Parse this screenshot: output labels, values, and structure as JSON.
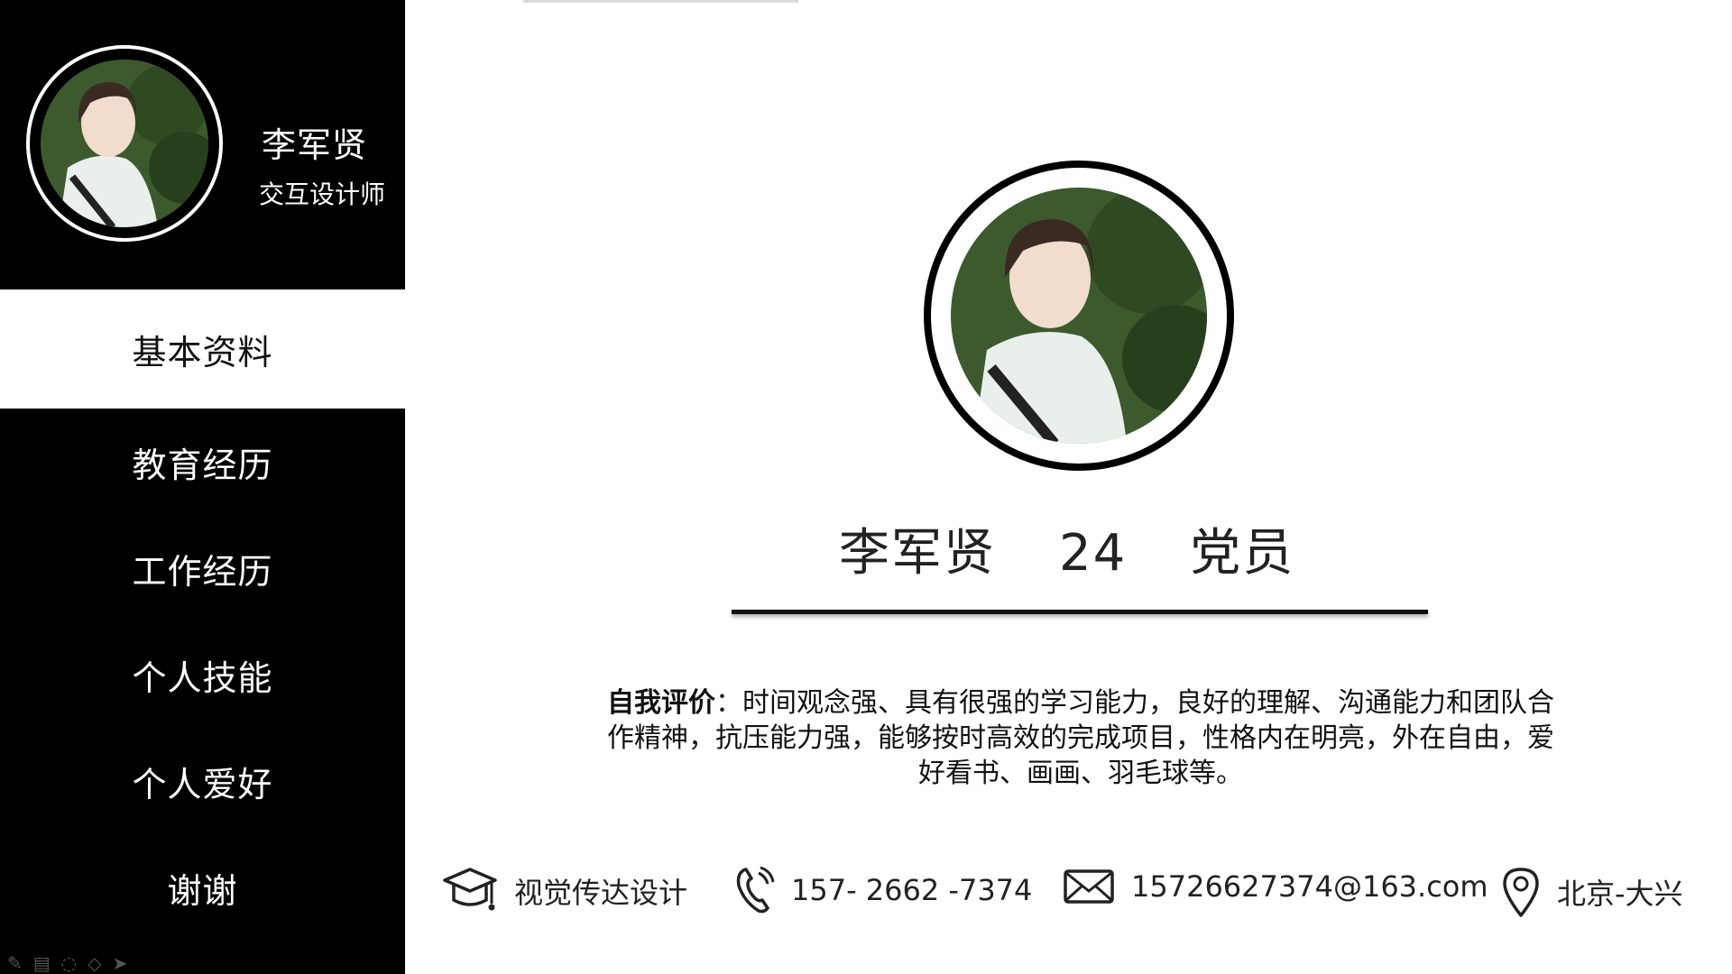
{
  "profile": {
    "name": "李军贤",
    "title": "交互设计师"
  },
  "nav": {
    "items": [
      {
        "label": "基本资料",
        "active": true
      },
      {
        "label": "教育经历",
        "active": false
      },
      {
        "label": "工作经历",
        "active": false
      },
      {
        "label": "个人技能",
        "active": false
      },
      {
        "label": "个人爱好",
        "active": false
      },
      {
        "label": "谢谢",
        "active": false
      }
    ]
  },
  "main": {
    "name": "李军贤",
    "age": "24",
    "political_status": "党员",
    "intro_label": "自我评价",
    "intro_text": "：时间观念强、具有很强的学习能力，良好的理解、沟通能力和团队合作精神，抗压能力强，能够按时高效的完成项目，性格内在明亮，外在自由，爱好看书、画画、羽毛球等。"
  },
  "contacts": {
    "major": {
      "icon": "graduation-cap-icon",
      "text": "视觉传达设计"
    },
    "phone": {
      "icon": "phone-icon",
      "text": "157- 2662 -7374"
    },
    "email": {
      "icon": "envelope-icon",
      "text": "15726627374@163.com"
    },
    "location": {
      "icon": "location-pin-icon",
      "text": "北京-大兴"
    }
  },
  "colors": {
    "sidebar": "#000000",
    "accent": "#111111",
    "background": "#ffffff"
  }
}
